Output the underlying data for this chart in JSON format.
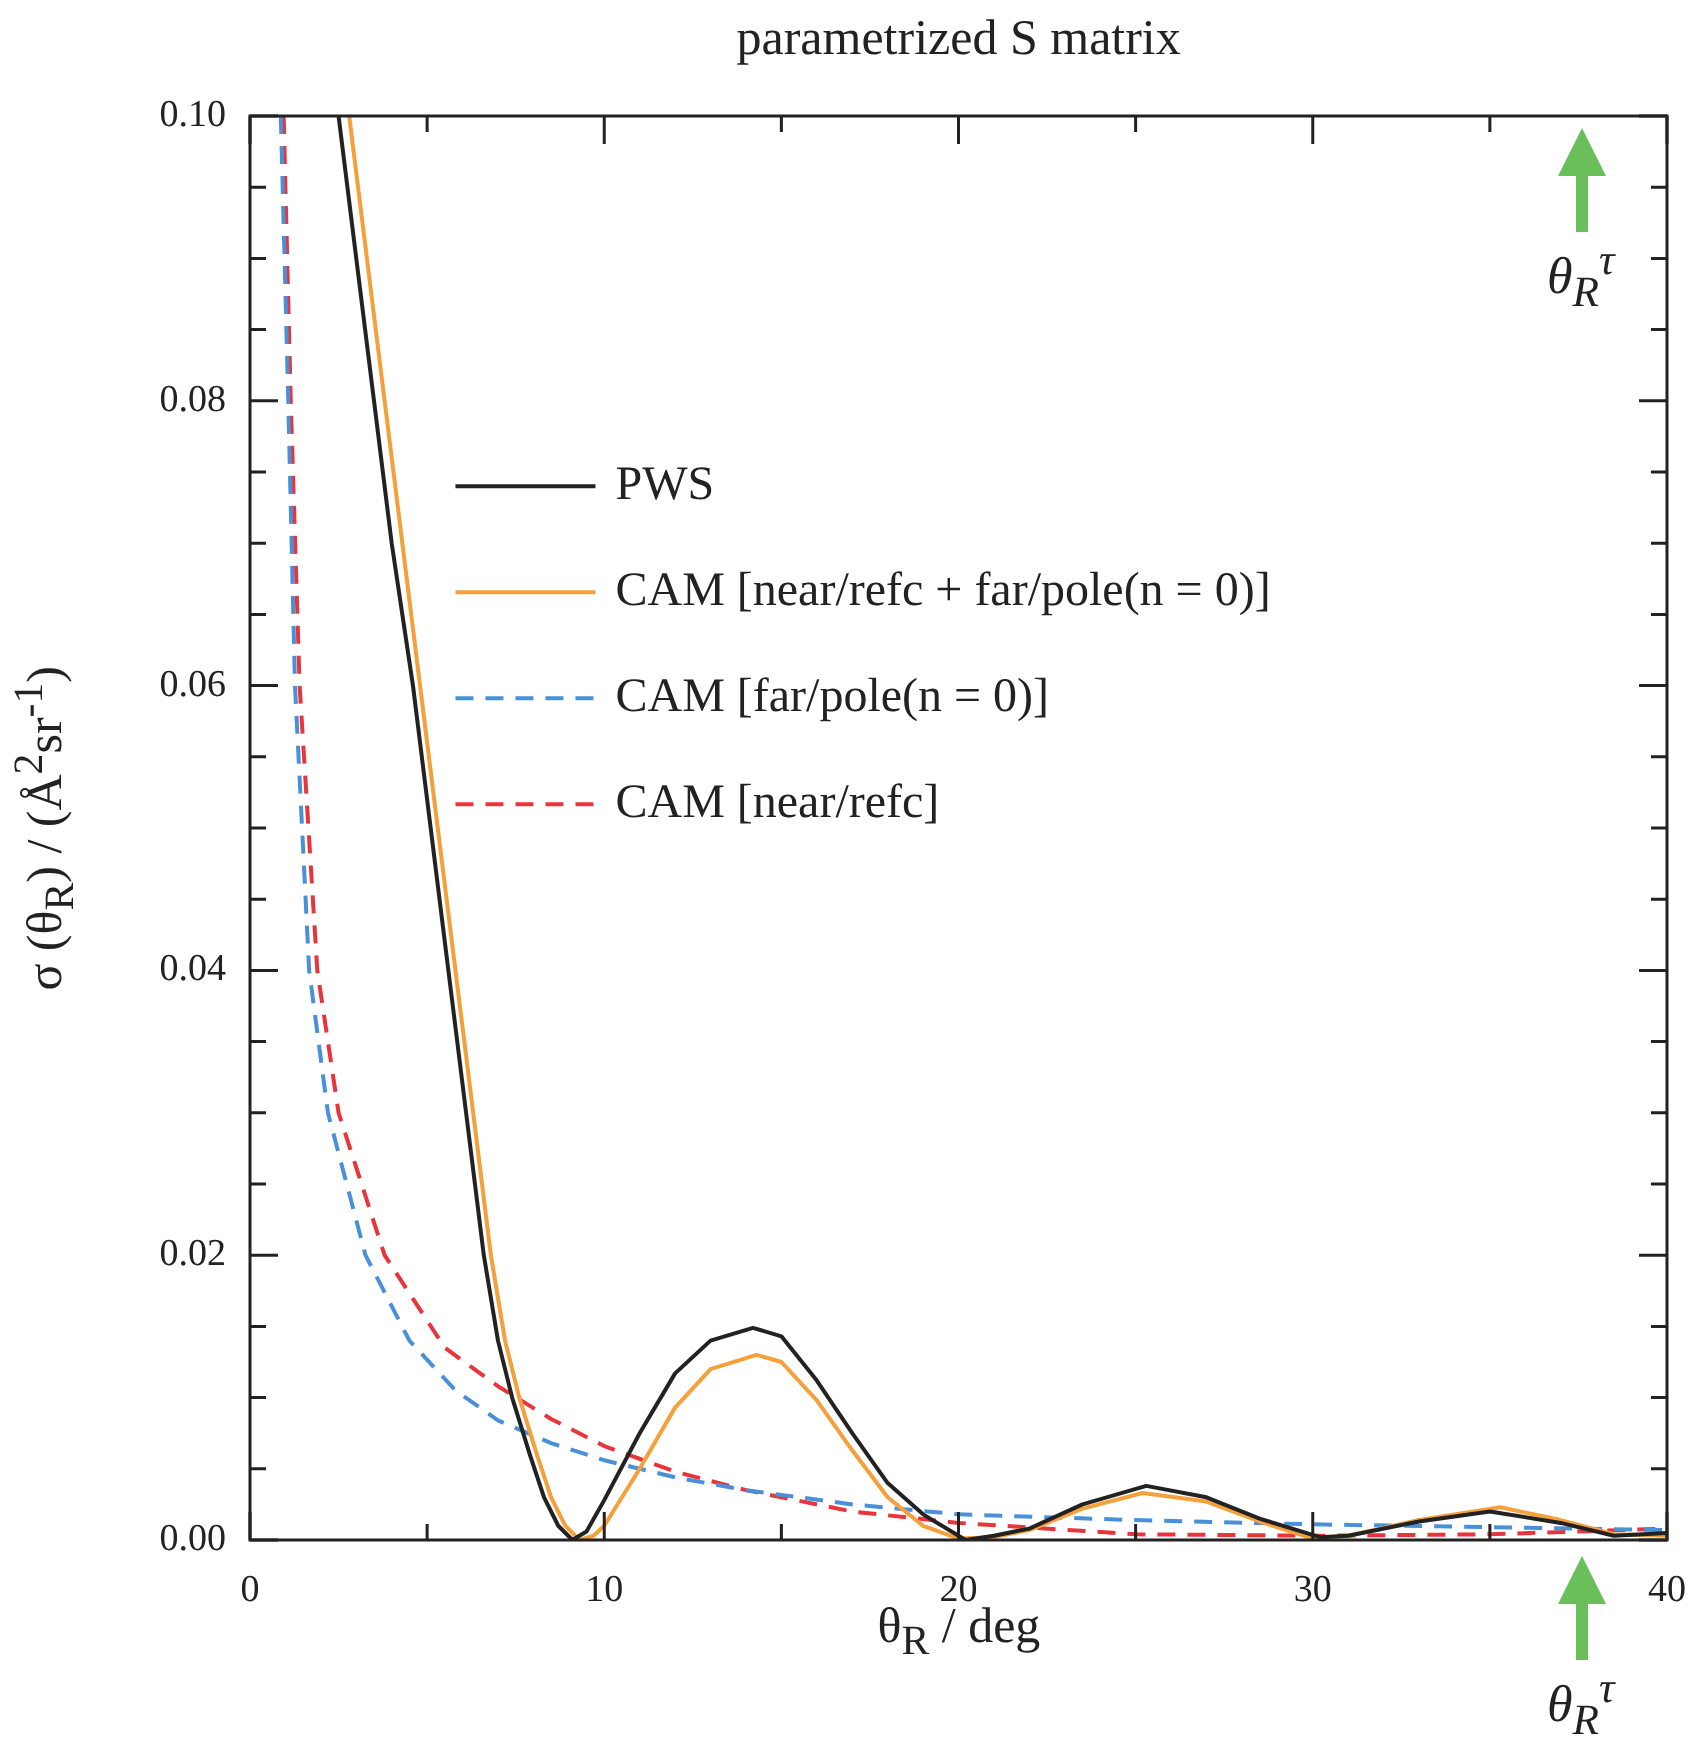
{
  "chart_data": {
    "type": "line",
    "title": "parametrized S matrix",
    "xlabel": "θ$_{R}$ / deg",
    "ylabel": "σ (θ$_{R}$)  / (Å$^{2}$sr$^{-1}$)",
    "xlim": [
      0,
      40
    ],
    "ylim": [
      0,
      0.1
    ],
    "xticks": [
      0,
      {
        "value": 5,
        "label": null
      },
      10,
      {
        "value": 15,
        "label": null
      },
      20,
      {
        "value": 25,
        "label": null
      },
      30,
      {
        "value": 35,
        "label": null
      },
      40
    ],
    "yticks": [
      {
        "value": 0,
        "label": "0.00"
      },
      {
        "value": 0.005,
        "label": null
      },
      {
        "value": 0.01,
        "label": null
      },
      {
        "value": 0.015,
        "label": null
      },
      {
        "value": 0.02,
        "label": "0.02"
      },
      {
        "value": 0.025,
        "label": null
      },
      {
        "value": 0.03,
        "label": null
      },
      {
        "value": 0.035,
        "label": null
      },
      {
        "value": 0.04,
        "label": "0.04"
      },
      {
        "value": 0.045,
        "label": null
      },
      {
        "value": 0.05,
        "label": null
      },
      {
        "value": 0.055,
        "label": null
      },
      {
        "value": 0.06,
        "label": "0.06"
      },
      {
        "value": 0.065,
        "label": null
      },
      {
        "value": 0.07,
        "label": null
      },
      {
        "value": 0.075,
        "label": null
      },
      {
        "value": 0.08,
        "label": "0.08"
      },
      {
        "value": 0.085,
        "label": null
      },
      {
        "value": 0.09,
        "label": null
      },
      {
        "value": 0.095,
        "label": null
      },
      {
        "value": 0.1,
        "label": "0.10"
      }
    ],
    "grid": false,
    "legend": "top left",
    "marker": "none",
    "series": [
      {
        "name": "PWS",
        "color": "#222222",
        "line_style": "solid",
        "x": [
          2.5,
          3.0,
          3.5,
          4.0,
          4.6,
          5.1,
          5.6,
          6.1,
          6.6,
          7.0,
          7.4,
          7.9,
          8.3,
          8.7,
          9.1,
          9.5,
          10,
          11,
          12,
          13,
          14.2,
          15,
          16,
          17,
          18,
          19,
          20.2,
          21,
          22,
          23.5,
          25.3,
          27,
          28.5,
          30.2,
          31,
          33,
          35,
          37,
          38.5,
          40
        ],
        "values": [
          0.1,
          0.09,
          0.08,
          0.07,
          0.06,
          0.05,
          0.04,
          0.03,
          0.02,
          0.014,
          0.01,
          0.006,
          0.003,
          0.001,
          0,
          0.0006,
          0.0028,
          0.0075,
          0.0117,
          0.014,
          0.0149,
          0.0143,
          0.0112,
          0.0075,
          0.004,
          0.0018,
          0,
          0.0003,
          0.0008,
          0.0025,
          0.0038,
          0.003,
          0.0015,
          0.0002,
          0.0003,
          0.0013,
          0.002,
          0.0012,
          0.0003,
          0.0005
        ]
      },
      {
        "name": "CAM [near/refc + far/pole(n = 0)]",
        "color": "#f5a03a",
        "line_style": "solid",
        "x": [
          2.8,
          3.3,
          3.8,
          4.3,
          4.8,
          5.3,
          5.8,
          6.3,
          6.8,
          7.2,
          7.6,
          8.1,
          8.5,
          8.9,
          9.3,
          9.7,
          10,
          11,
          12,
          13,
          14.3,
          15,
          16,
          17,
          18,
          19,
          20,
          21,
          22,
          23.5,
          25.2,
          27,
          28.5,
          30,
          31,
          33,
          35.3,
          37,
          38.5,
          40
        ],
        "values": [
          0.1,
          0.09,
          0.08,
          0.07,
          0.06,
          0.05,
          0.04,
          0.03,
          0.02,
          0.014,
          0.01,
          0.006,
          0.003,
          0.001,
          0,
          0.0003,
          0.001,
          0.005,
          0.0093,
          0.012,
          0.013,
          0.0125,
          0.0098,
          0.0063,
          0.003,
          0.001,
          0.0001,
          0.0002,
          0.0007,
          0.0022,
          0.0033,
          0.0027,
          0.0013,
          0.0001,
          0.0003,
          0.0014,
          0.0023,
          0.0014,
          0.0004,
          0.0003
        ]
      },
      {
        "name": "CAM [far/pole(n = 0)]",
        "color": "#4a90d9",
        "line_style": "dashed",
        "x": [
          0.87,
          1.08,
          1.27,
          1.67,
          2.2,
          3.26,
          4.5,
          5.8,
          7,
          8.5,
          10,
          12,
          14,
          17,
          20,
          25,
          30,
          35,
          40
        ],
        "values": [
          0.1,
          0.08,
          0.06,
          0.04,
          0.03,
          0.02,
          0.014,
          0.0105,
          0.0084,
          0.0068,
          0.0056,
          0.0044,
          0.0035,
          0.0025,
          0.0018,
          0.0014,
          0.0011,
          0.0009,
          0.0007
        ]
      },
      {
        "name": "CAM [near/refc]",
        "color": "#e8343a",
        "line_style": "dashed",
        "x": [
          0.95,
          1.15,
          1.4,
          1.9,
          2.5,
          3.8,
          5.5,
          7,
          8.5,
          10,
          12,
          14,
          17,
          20,
          25,
          30,
          35,
          40
        ],
        "values": [
          0.1,
          0.08,
          0.06,
          0.04,
          0.03,
          0.02,
          0.0135,
          0.0108,
          0.0085,
          0.0066,
          0.0048,
          0.0035,
          0.002,
          0.0012,
          0.0004,
          0.0003,
          0.0004,
          0.0008
        ]
      }
    ],
    "annotations": [
      "θ$_{R}$$^{τ}$",
      "θ$_{R}$$^{τ}$"
    ]
  }
}
